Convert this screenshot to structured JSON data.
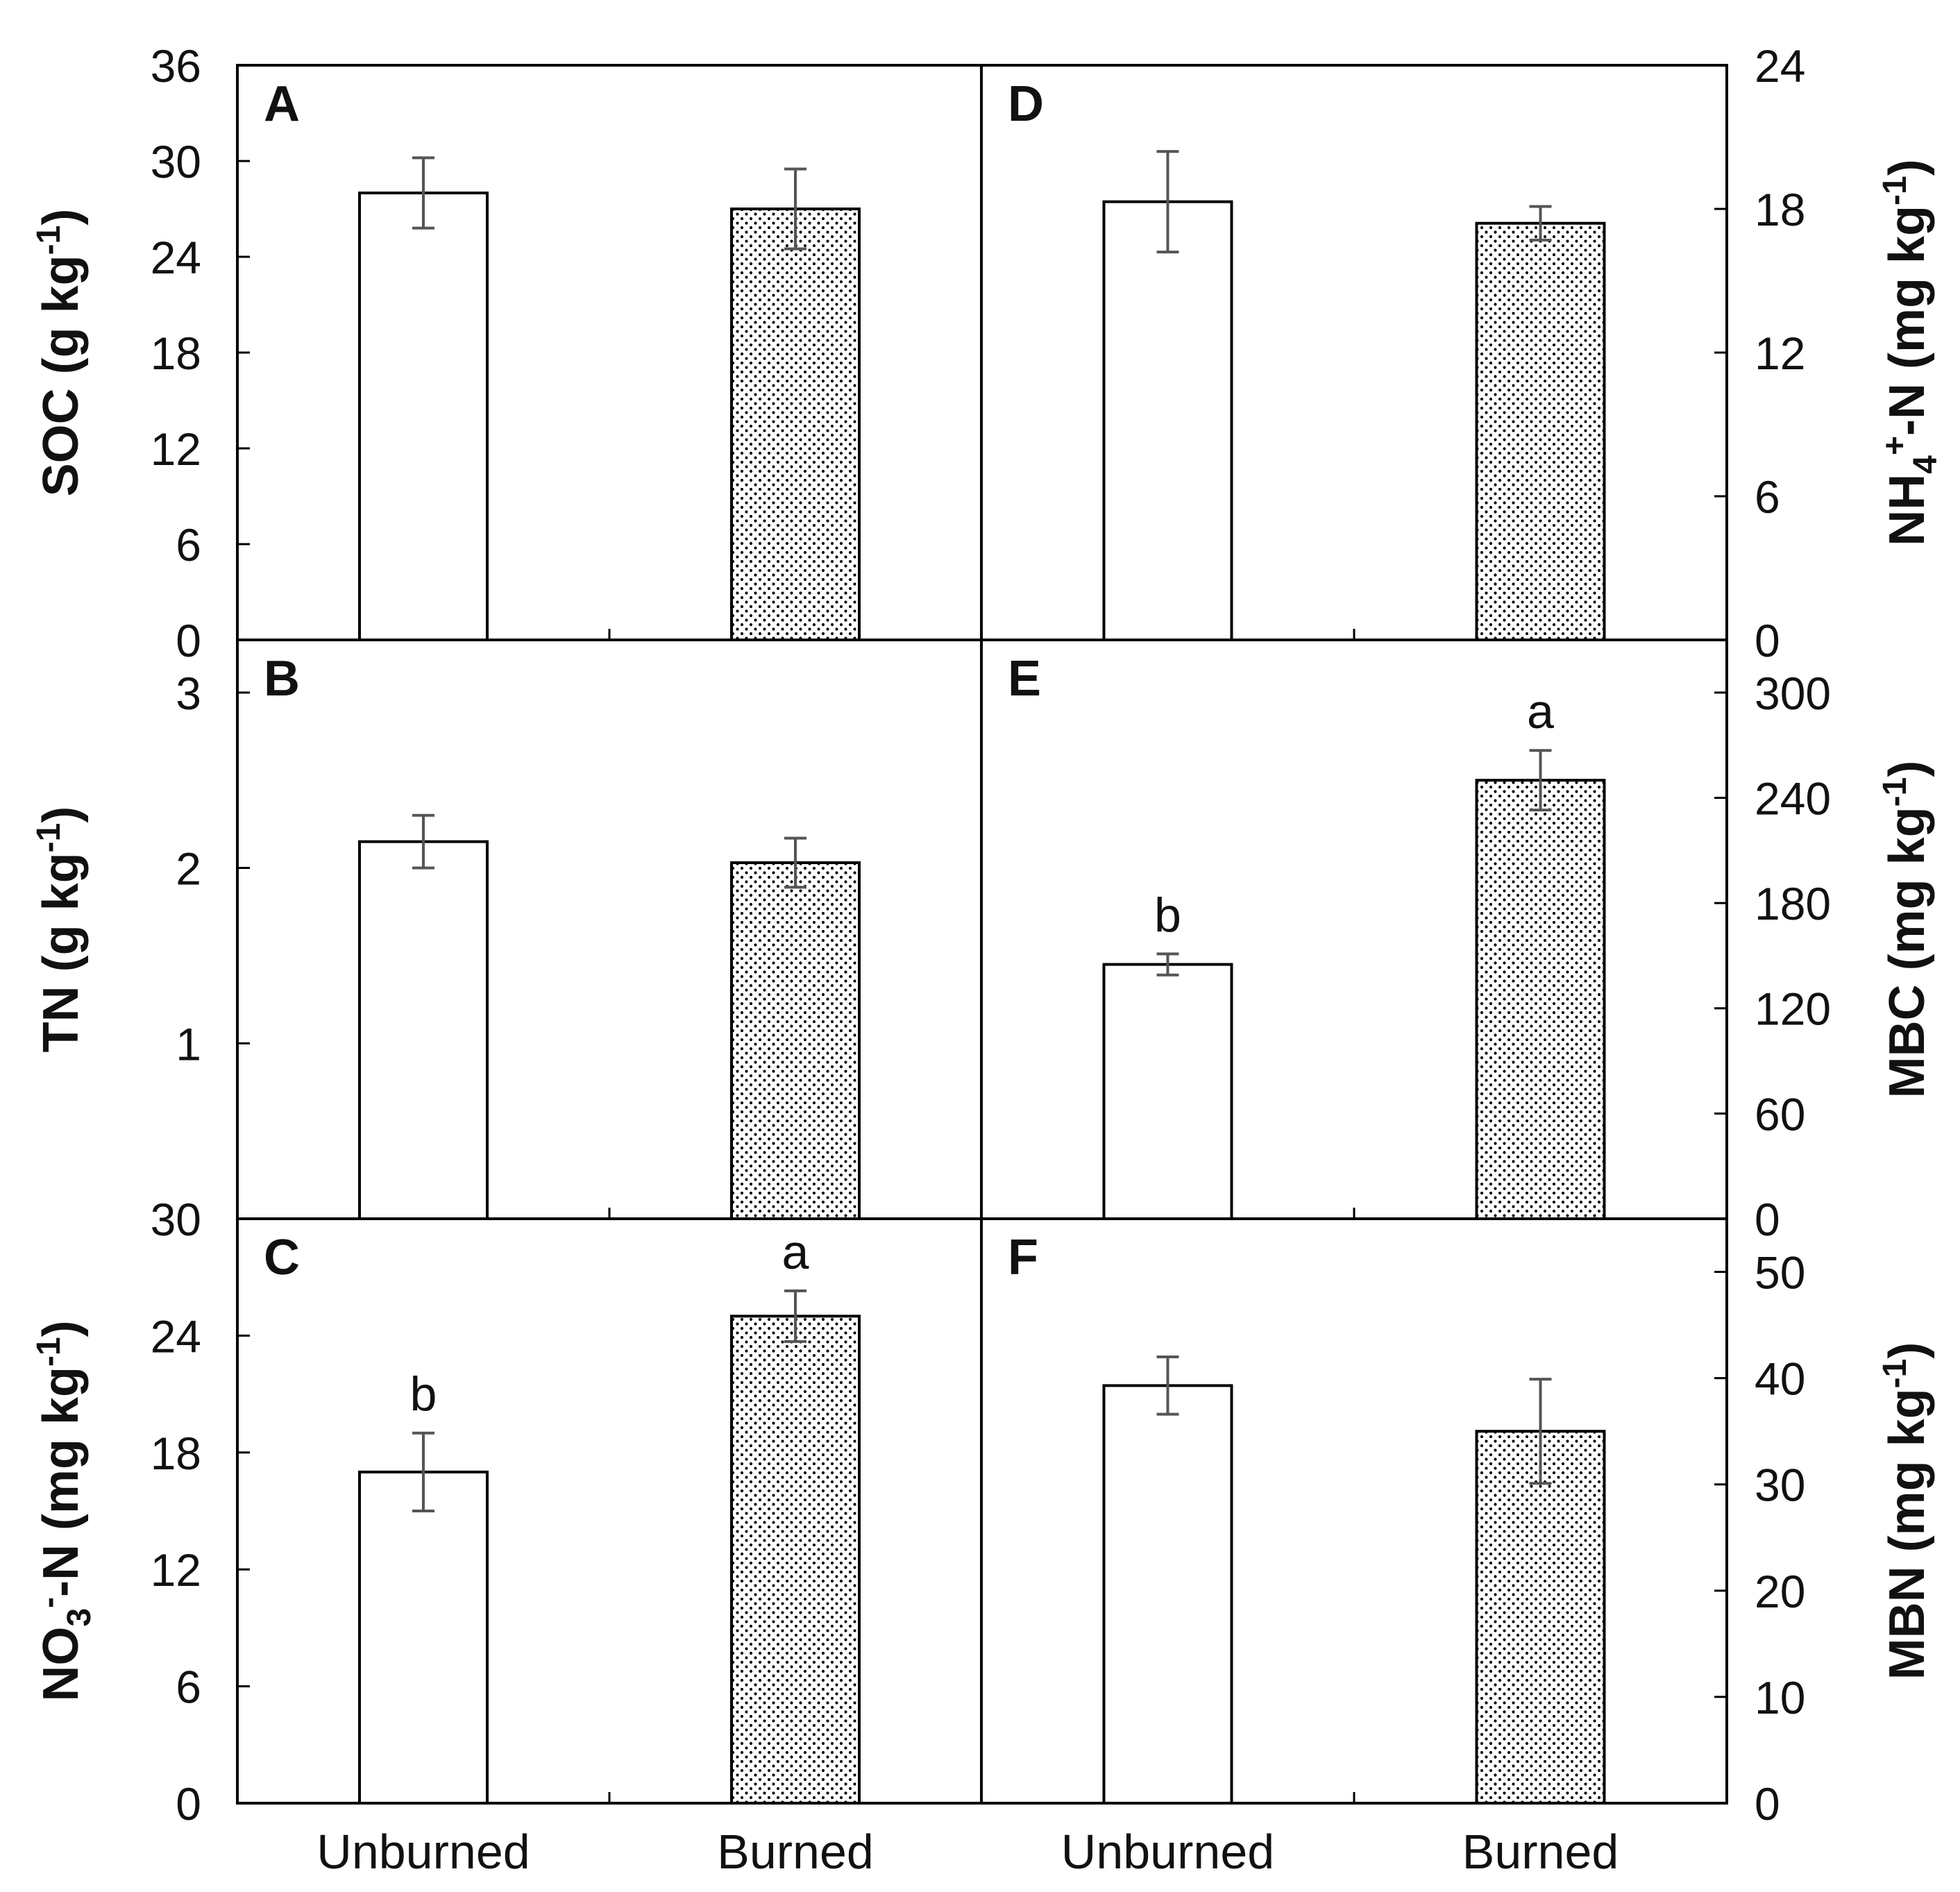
{
  "figure_title": "",
  "colors": {
    "bar_unburned": "#ffffff",
    "bar_burned_pattern": "#000000",
    "error_bar": "#555555",
    "axis": "#000000"
  },
  "chart_data": [
    {
      "panel": "A",
      "type": "bar",
      "title": "",
      "categories": [
        "Unburned",
        "Burned"
      ],
      "values": [
        28.0,
        27.0
      ],
      "errors": [
        2.2,
        2.5
      ],
      "sig_letters": [
        "",
        ""
      ],
      "ylabel_parts": [
        "SOC (g kg",
        "-1",
        ")"
      ],
      "ylim": [
        0,
        36
      ],
      "yticks": [
        0,
        6,
        12,
        18,
        24,
        30,
        36
      ],
      "axis_side": "left"
    },
    {
      "panel": "B",
      "type": "bar",
      "title": "",
      "categories": [
        "Unburned",
        "Burned"
      ],
      "values": [
        2.15,
        2.03
      ],
      "errors": [
        0.15,
        0.14
      ],
      "sig_letters": [
        "",
        ""
      ],
      "ylabel_parts": [
        "TN (g kg",
        "-1",
        ")"
      ],
      "ylim": [
        0,
        3.3
      ],
      "yticks": [
        1,
        2,
        3
      ],
      "axis_side": "left"
    },
    {
      "panel": "C",
      "type": "bar",
      "title": "",
      "categories": [
        "Unburned",
        "Burned"
      ],
      "values": [
        17.0,
        25.0
      ],
      "errors": [
        2.0,
        1.3
      ],
      "sig_letters": [
        "b",
        "a"
      ],
      "ylabel_parts": [
        "NO",
        "3",
        "-",
        "-N (mg kg",
        "-1",
        ")"
      ],
      "ylim": [
        0,
        30
      ],
      "yticks": [
        0,
        6,
        12,
        18,
        24,
        30
      ],
      "axis_side": "left"
    },
    {
      "panel": "D",
      "type": "bar",
      "title": "",
      "categories": [
        "Unburned",
        "Burned"
      ],
      "values": [
        18.3,
        17.4
      ],
      "errors": [
        2.1,
        0.7
      ],
      "sig_letters": [
        "",
        ""
      ],
      "ylabel_parts": [
        "NH",
        "4",
        "+",
        "-N (mg kg",
        "-1",
        ")"
      ],
      "ylim": [
        0,
        24
      ],
      "yticks": [
        0,
        6,
        12,
        18,
        24
      ],
      "axis_side": "right"
    },
    {
      "panel": "E",
      "type": "bar",
      "title": "",
      "categories": [
        "Unburned",
        "Burned"
      ],
      "values": [
        145,
        250
      ],
      "errors": [
        6,
        17
      ],
      "sig_letters": [
        "b",
        "a"
      ],
      "ylabel_parts": [
        "MBC (mg kg",
        "-1",
        ")"
      ],
      "ylim": [
        0,
        330
      ],
      "yticks": [
        0,
        60,
        120,
        180,
        240,
        300
      ],
      "axis_side": "right"
    },
    {
      "panel": "F",
      "type": "bar",
      "title": "",
      "categories": [
        "Unburned",
        "Burned"
      ],
      "values": [
        39.3,
        35.0
      ],
      "errors": [
        2.7,
        4.9
      ],
      "sig_letters": [
        "",
        ""
      ],
      "ylabel_parts": [
        "MBN (mg kg",
        "-1",
        ")"
      ],
      "ylim": [
        0,
        55
      ],
      "yticks": [
        0,
        10,
        20,
        30,
        40,
        50
      ],
      "axis_side": "right"
    }
  ]
}
